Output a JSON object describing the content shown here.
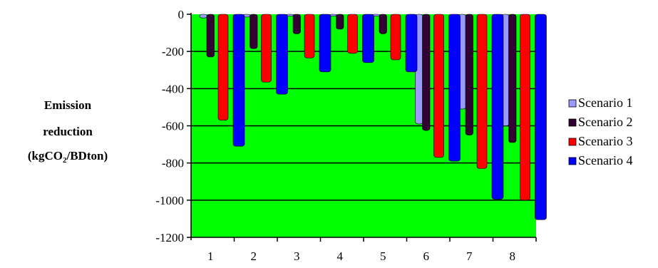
{
  "chart_data": {
    "type": "bar",
    "title": "",
    "xlabel": "",
    "ylabel": {
      "line1": "Emission",
      "line2": "reduction",
      "line3_pre": "(kgCO",
      "line3_sub": "2",
      "line3_post": "/BDton)"
    },
    "categories": [
      "1",
      "2",
      "3",
      "4",
      "5",
      "6",
      "7",
      "8"
    ],
    "ylim": [
      -1200,
      0
    ],
    "yticks": [
      "0",
      "-200",
      "-400",
      "-600",
      "-800",
      "-1000",
      "-1200"
    ],
    "yticks_values": [
      0,
      -200,
      -400,
      -600,
      -800,
      -1000,
      -1200
    ],
    "grid": true,
    "legend_position": "right",
    "plot_background": "#00ff00",
    "series": [
      {
        "name": "Scenario 1",
        "color": "#9999ff",
        "values": [
          -20,
          -15,
          -10,
          -10,
          -10,
          -590,
          -510,
          -600
        ]
      },
      {
        "name": "Scenario 2",
        "color": "#330033",
        "values": [
          -230,
          -185,
          -105,
          -80,
          -105,
          -625,
          -650,
          -690
        ]
      },
      {
        "name": "Scenario 3",
        "color": "#ff0000",
        "values": [
          -570,
          -365,
          -235,
          -210,
          -245,
          -770,
          -830,
          -1000
        ]
      },
      {
        "name": "Scenario 4",
        "color": "#0000ff",
        "values": [
          -710,
          -430,
          -310,
          -260,
          -310,
          -790,
          -995,
          -1105
        ]
      }
    ]
  }
}
